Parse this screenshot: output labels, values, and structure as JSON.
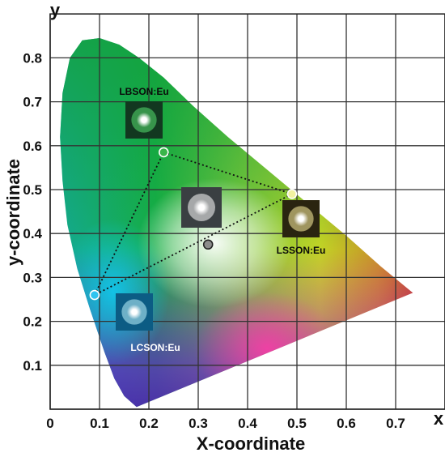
{
  "chart_data": {
    "type": "scatter",
    "title": "",
    "xlabel": "X-coordinate",
    "ylabel": "y-coordinate",
    "x_axis_letter": "x",
    "y_axis_letter": "y",
    "xlim": [
      0,
      0.8
    ],
    "ylim": [
      0,
      0.9
    ],
    "x_ticks": [
      "0",
      "0.1",
      "0.2",
      "0.3",
      "0.4",
      "0.5",
      "0.6",
      "0.7"
    ],
    "y_ticks": [
      "0.1",
      "0.2",
      "0.3",
      "0.4",
      "0.5",
      "0.6",
      "0.7",
      "0.8"
    ],
    "grid": true,
    "series": [
      {
        "points": [
          {
            "label": "LBSON:Eu",
            "x": 0.23,
            "y": 0.585,
            "color": "#39b54a"
          },
          {
            "label": "LSSON:Eu",
            "x": 0.49,
            "y": 0.49,
            "color": "#f2f2a0"
          },
          {
            "label": "LCSON:Eu",
            "x": 0.09,
            "y": 0.26,
            "color": "#2ec4f0"
          },
          {
            "label": "",
            "x": 0.32,
            "y": 0.375,
            "color": "#8c8c8c"
          }
        ]
      }
    ],
    "triangle": [
      "LBSON:Eu",
      "LSSON:Eu",
      "LCSON:Eu"
    ]
  }
}
